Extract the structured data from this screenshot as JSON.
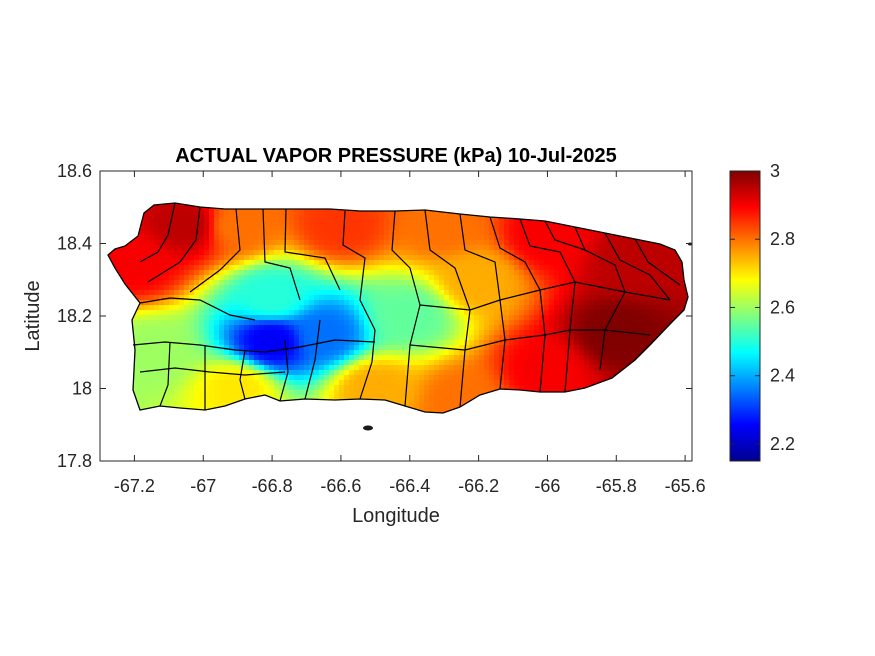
{
  "chart_data": {
    "type": "heatmap",
    "title": "ACTUAL VAPOR PRESSURE (kPa) 10-Jul-2025",
    "xlabel": "Longitude",
    "ylabel": "Latitude",
    "xlim": [
      -67.3,
      -65.58
    ],
    "ylim": [
      17.8,
      18.6
    ],
    "xticks": [
      -67.2,
      -67,
      -66.8,
      -66.6,
      -66.4,
      -66.2,
      -66,
      -65.8,
      -65.6
    ],
    "xtick_labels": [
      "-67.2",
      "-67",
      "-66.8",
      "-66.6",
      "-66.4",
      "-66.2",
      "-66",
      "-65.8",
      "-65.6"
    ],
    "yticks": [
      17.8,
      18,
      18.2,
      18.4,
      18.6
    ],
    "ytick_labels": [
      "17.8",
      "18",
      "18.2",
      "18.4",
      "18.6"
    ],
    "colorbar": {
      "colormap": "jet",
      "clim": [
        2.15,
        3.0
      ],
      "ticks": [
        2.2,
        2.4,
        2.6,
        2.8,
        3
      ],
      "tick_labels": [
        "2.2",
        "2.4",
        "2.6",
        "2.8",
        "3"
      ],
      "label": ""
    },
    "field_samples": [
      {
        "lon": -67.2,
        "lat": 18.35,
        "value": 2.9
      },
      {
        "lon": -67.05,
        "lat": 18.45,
        "value": 2.95
      },
      {
        "lon": -66.9,
        "lat": 18.45,
        "value": 2.8
      },
      {
        "lon": -66.6,
        "lat": 18.45,
        "value": 2.85
      },
      {
        "lon": -66.3,
        "lat": 18.45,
        "value": 2.8
      },
      {
        "lon": -66.0,
        "lat": 18.42,
        "value": 2.9
      },
      {
        "lon": -65.75,
        "lat": 18.35,
        "value": 2.95
      },
      {
        "lon": -66.8,
        "lat": 18.25,
        "value": 2.5
      },
      {
        "lon": -66.8,
        "lat": 18.13,
        "value": 2.25
      },
      {
        "lon": -66.65,
        "lat": 18.15,
        "value": 2.35
      },
      {
        "lon": -66.4,
        "lat": 18.2,
        "value": 2.55
      },
      {
        "lon": -67.15,
        "lat": 18.1,
        "value": 2.6
      },
      {
        "lon": -66.9,
        "lat": 18.0,
        "value": 2.7
      },
      {
        "lon": -66.5,
        "lat": 18.0,
        "value": 2.75
      },
      {
        "lon": -66.25,
        "lat": 17.97,
        "value": 2.8
      },
      {
        "lon": -66.0,
        "lat": 18.05,
        "value": 2.9
      },
      {
        "lon": -65.8,
        "lat": 18.15,
        "value": 3.0
      },
      {
        "lon": -66.2,
        "lat": 18.3,
        "value": 2.75
      }
    ]
  }
}
